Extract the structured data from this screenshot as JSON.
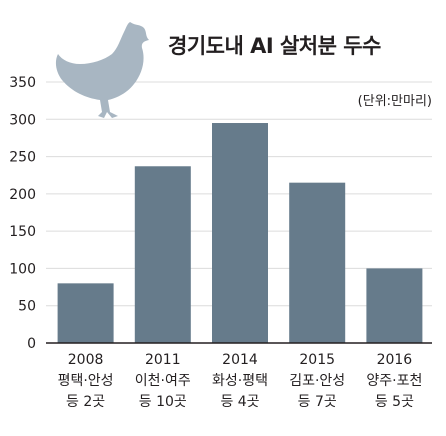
{
  "title": "경기도내 AI 살처분 두수",
  "unit_label": "(단위:만마리)",
  "icon": "hen-icon",
  "colors": {
    "bar": "#667b8b",
    "axis": "#231f20",
    "grid": "#dcdcdc",
    "hen": "#a8b6c2"
  },
  "chart_data": {
    "type": "bar",
    "title": "경기도내 AI 살처분 두수",
    "unit": "(단위:만마리)",
    "ylim": [
      0,
      350
    ],
    "yticks": [
      0,
      50,
      100,
      150,
      200,
      250,
      300,
      350
    ],
    "grid": true,
    "categories": [
      {
        "year": "2008",
        "region": "평택·안성",
        "count": "등 2곳"
      },
      {
        "year": "2011",
        "region": "이천·여주",
        "count": "등 10곳"
      },
      {
        "year": "2014",
        "region": "화성·평택",
        "count": "등 4곳"
      },
      {
        "year": "2015",
        "region": "김포·안성",
        "count": "등 7곳"
      },
      {
        "year": "2016",
        "region": "양주·포천",
        "count": "등 5곳"
      }
    ],
    "values": [
      80,
      237,
      295,
      215,
      100
    ]
  }
}
